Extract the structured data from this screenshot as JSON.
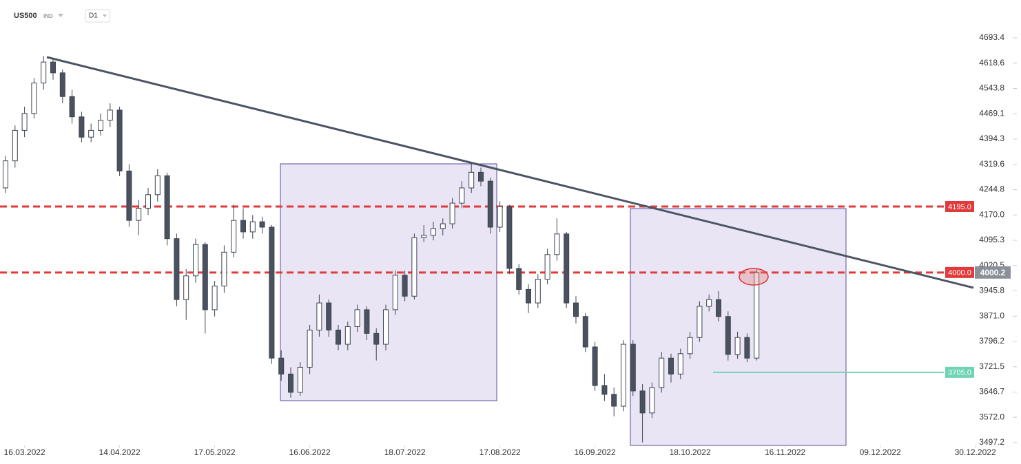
{
  "chart_data": {
    "type": "candlestick",
    "symbol": "US500",
    "market": "IND",
    "timeframe": "D1",
    "up_color": "#ffffff",
    "down_color": "#4a5260",
    "candles": [
      [
        4250,
        4345,
        4235,
        4330
      ],
      [
        4330,
        4435,
        4310,
        4420
      ],
      [
        4420,
        4490,
        4400,
        4470
      ],
      [
        4470,
        4575,
        4455,
        4560
      ],
      [
        4560,
        4640,
        4540,
        4622
      ],
      [
        4622,
        4635,
        4570,
        4590
      ],
      [
        4590,
        4600,
        4500,
        4520
      ],
      [
        4520,
        4540,
        4440,
        4460
      ],
      [
        4460,
        4475,
        4385,
        4400
      ],
      [
        4400,
        4440,
        4385,
        4420
      ],
      [
        4420,
        4470,
        4405,
        4450
      ],
      [
        4450,
        4500,
        4430,
        4480
      ],
      [
        4480,
        4490,
        4285,
        4300
      ],
      [
        4300,
        4320,
        4135,
        4154
      ],
      [
        4154,
        4215,
        4110,
        4190
      ],
      [
        4190,
        4250,
        4170,
        4230
      ],
      [
        4230,
        4305,
        4210,
        4286
      ],
      [
        4286,
        4295,
        4080,
        4100
      ],
      [
        4100,
        4115,
        3900,
        3920
      ],
      [
        3920,
        4010,
        3860,
        3990
      ],
      [
        3990,
        4100,
        3970,
        4083
      ],
      [
        4083,
        4090,
        3820,
        3890
      ],
      [
        3890,
        3975,
        3870,
        3960
      ],
      [
        3960,
        4080,
        3940,
        4060
      ],
      [
        4060,
        4200,
        4045,
        4154
      ],
      [
        4154,
        4190,
        4100,
        4120
      ],
      [
        4120,
        4170,
        4100,
        4150
      ],
      [
        4150,
        4165,
        4115,
        4134
      ],
      [
        4134,
        4140,
        3730,
        3747
      ],
      [
        3747,
        3770,
        3680,
        3700
      ],
      [
        3700,
        3720,
        3630,
        3646
      ],
      [
        3646,
        3735,
        3636,
        3720
      ],
      [
        3720,
        3845,
        3700,
        3830
      ],
      [
        3830,
        3935,
        3810,
        3910
      ],
      [
        3910,
        3920,
        3810,
        3830
      ],
      [
        3830,
        3845,
        3770,
        3788
      ],
      [
        3788,
        3855,
        3770,
        3840
      ],
      [
        3840,
        3905,
        3825,
        3890
      ],
      [
        3890,
        3900,
        3800,
        3820
      ],
      [
        3820,
        3835,
        3740,
        3788
      ],
      [
        3788,
        3905,
        3770,
        3890
      ],
      [
        3890,
        4005,
        3875,
        3992
      ],
      [
        3992,
        4005,
        3915,
        3930
      ],
      [
        3930,
        4115,
        3920,
        4103
      ],
      [
        4103,
        4140,
        4090,
        4110
      ],
      [
        4110,
        4150,
        4095,
        4130
      ],
      [
        4130,
        4160,
        4110,
        4144
      ],
      [
        4144,
        4220,
        4130,
        4205
      ],
      [
        4205,
        4270,
        4190,
        4250
      ],
      [
        4250,
        4325,
        4235,
        4296
      ],
      [
        4296,
        4310,
        4255,
        4270
      ],
      [
        4270,
        4280,
        4115,
        4134
      ],
      [
        4134,
        4210,
        4120,
        4195
      ],
      [
        4195,
        4200,
        3995,
        4012
      ],
      [
        4012,
        4025,
        3935,
        3950
      ],
      [
        3950,
        3965,
        3880,
        3910
      ],
      [
        3910,
        3995,
        3895,
        3980
      ],
      [
        3980,
        4070,
        3965,
        4053
      ],
      [
        4053,
        4160,
        4035,
        4114
      ],
      [
        4114,
        4120,
        3895,
        3910
      ],
      [
        3910,
        3930,
        3850,
        3870
      ],
      [
        3870,
        3880,
        3765,
        3780
      ],
      [
        3780,
        3795,
        3650,
        3666
      ],
      [
        3666,
        3700,
        3620,
        3640
      ],
      [
        3640,
        3660,
        3575,
        3605
      ],
      [
        3605,
        3800,
        3590,
        3788
      ],
      [
        3788,
        3800,
        3635,
        3650
      ],
      [
        3650,
        3670,
        3498,
        3585
      ],
      [
        3585,
        3675,
        3570,
        3660
      ],
      [
        3660,
        3765,
        3645,
        3747
      ],
      [
        3747,
        3760,
        3675,
        3700
      ],
      [
        3700,
        3775,
        3685,
        3760
      ],
      [
        3760,
        3825,
        3745,
        3808
      ],
      [
        3808,
        3915,
        3795,
        3900
      ],
      [
        3900,
        3935,
        3885,
        3920
      ],
      [
        3920,
        3945,
        3855,
        3870
      ],
      [
        3870,
        3885,
        3740,
        3758
      ],
      [
        3758,
        3825,
        3745,
        3808
      ],
      [
        3808,
        3820,
        3735,
        3747
      ],
      [
        3747,
        4012,
        3740,
        4000
      ]
    ],
    "ylim": [
      3493.1,
      4805.3
    ],
    "yticks": [
      4693.4,
      4618.6,
      4543.8,
      4469.1,
      4394.3,
      4319.6,
      4244.8,
      {
        "value": 4170,
        "label": "4170.0"
      },
      4095.3,
      4020.5,
      3945.8,
      {
        "value": 3871,
        "label": "3871.0"
      },
      3796.2,
      3721.5,
      3646.7,
      {
        "value": 3572,
        "label": "3572.0"
      },
      3497.2
    ],
    "xticks": [
      {
        "value": 2,
        "label": "16.03.2022"
      },
      {
        "value": 12,
        "label": "14.04.2022"
      },
      {
        "value": 22,
        "label": "17.05.2022"
      },
      {
        "value": 32,
        "label": "16.06.2022"
      },
      {
        "value": 42,
        "label": "18.07.2022"
      },
      {
        "value": 52,
        "label": "17.08.2022"
      },
      {
        "value": 62,
        "label": "16.09.2022"
      },
      {
        "value": 72,
        "label": "18.10.2022"
      },
      {
        "value": 82,
        "label": "16.11.2022"
      },
      {
        "value": 92,
        "label": "09.12.2022"
      },
      {
        "value": 102,
        "label": "30.12.2022"
      }
    ],
    "levels": [
      {
        "value": 4195,
        "label": "4195.0",
        "color": "#e03a3a",
        "style": "dashed"
      },
      {
        "value": 4000,
        "label": "4000.0",
        "color": "#e03a3a",
        "style": "dashed"
      },
      {
        "value": 3705,
        "label": "3705.0",
        "color": "#6fd3b4",
        "style": "solid"
      }
    ],
    "last_price": 4000.2
  }
}
